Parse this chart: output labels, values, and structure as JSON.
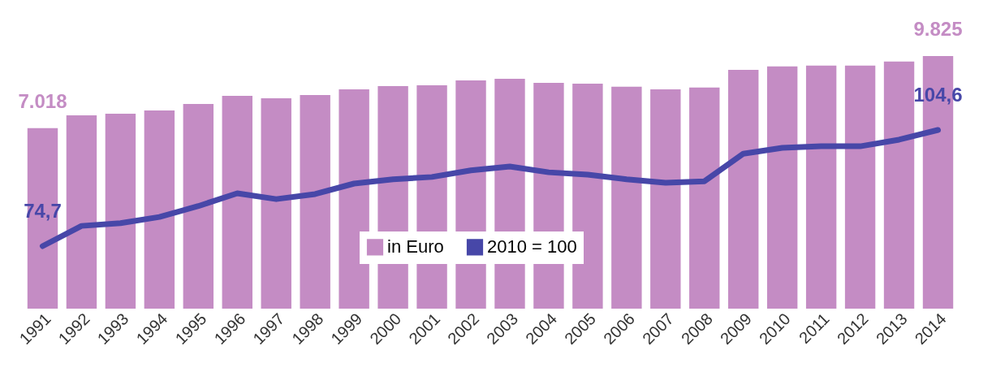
{
  "chart_data": {
    "type": "bar",
    "categories": [
      "1991",
      "1992",
      "1993",
      "1994",
      "1995",
      "1996",
      "1997",
      "1998",
      "1999",
      "2000",
      "2001",
      "2002",
      "2003",
      "2004",
      "2005",
      "2006",
      "2007",
      "2008",
      "2009",
      "2010",
      "2011",
      "2012",
      "2013",
      "2014"
    ],
    "series": [
      {
        "name": "in Euro",
        "color": "#c48cc4",
        "values": [
          7018,
          7520,
          7580,
          7710,
          7960,
          8280,
          8180,
          8310,
          8530,
          8660,
          8690,
          8880,
          8940,
          8780,
          8750,
          8630,
          8530,
          8600,
          9290,
          9420,
          9450,
          9450,
          9610,
          9825
        ],
        "value_labels": [
          "7.018",
          null,
          null,
          null,
          null,
          null,
          null,
          null,
          null,
          null,
          null,
          null,
          null,
          null,
          null,
          null,
          null,
          null,
          null,
          null,
          null,
          null,
          null,
          "9.825"
        ]
      },
      {
        "name": "2010 = 100",
        "type": "line",
        "axis": "y2",
        "color": "#4747a8",
        "values": [
          74.7,
          79.9,
          80.6,
          82.2,
          85.0,
          88.3,
          86.8,
          88.1,
          90.8,
          91.9,
          92.5,
          94.2,
          95.2,
          93.7,
          93.1,
          91.9,
          91.0,
          91.4,
          98.5,
          100.0,
          100.4,
          100.4,
          102.1,
          104.6
        ],
        "value_labels": [
          "74,7",
          null,
          null,
          null,
          null,
          null,
          null,
          null,
          null,
          null,
          null,
          null,
          null,
          null,
          null,
          null,
          null,
          null,
          null,
          null,
          null,
          null,
          null,
          "104,6"
        ]
      }
    ],
    "tick_labels": "x",
    "grid": false,
    "legend": "bottom",
    "line_style": "solid"
  }
}
